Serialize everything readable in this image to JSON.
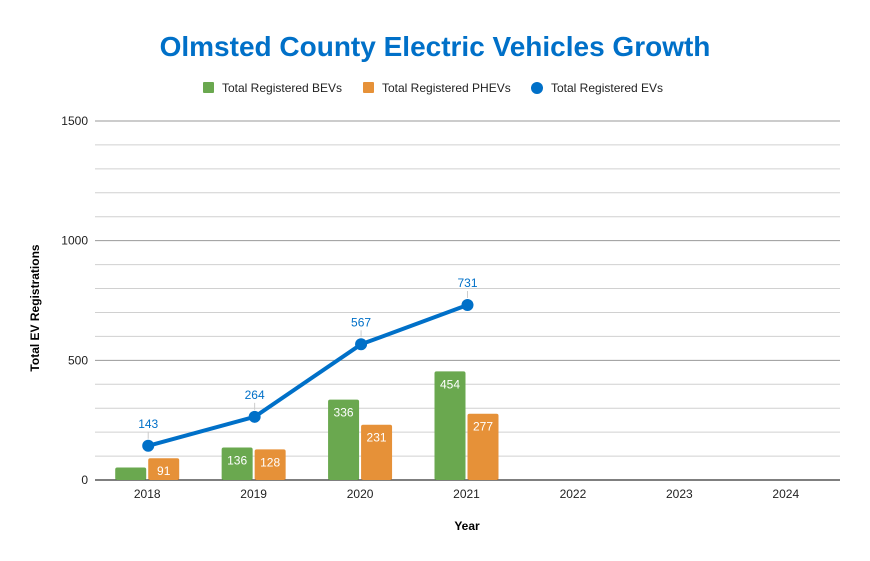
{
  "chart_data": {
    "type": "bar",
    "title": "Olmsted County Electric Vehicles Growth",
    "xlabel": "Year",
    "ylabel": "Total EV Registrations",
    "categories": [
      "2018",
      "2019",
      "2020",
      "2021",
      "2022",
      "2023",
      "2024"
    ],
    "ylim": [
      0,
      1500
    ],
    "yticks": [
      "0",
      "500",
      "1000",
      "1500"
    ],
    "grid": true,
    "legend_position": "top",
    "series": [
      {
        "name": "Total Registered BEVs",
        "type": "bar",
        "color": "#6aa84f",
        "values": [
          52,
          136,
          336,
          454,
          null,
          null,
          null
        ],
        "labels": [
          "",
          "136",
          "336",
          "454",
          "",
          "",
          ""
        ]
      },
      {
        "name": "Total Registered PHEVs",
        "type": "bar",
        "color": "#e69138",
        "values": [
          91,
          128,
          231,
          277,
          null,
          null,
          null
        ],
        "labels": [
          "91",
          "128",
          "231",
          "277",
          "",
          "",
          ""
        ]
      },
      {
        "name": "Total Registered EVs",
        "type": "line",
        "color": "#0070c8",
        "values": [
          143,
          264,
          567,
          731,
          null,
          null,
          null
        ],
        "labels": [
          "143",
          "264",
          "567",
          "731",
          "",
          "",
          ""
        ]
      }
    ]
  }
}
